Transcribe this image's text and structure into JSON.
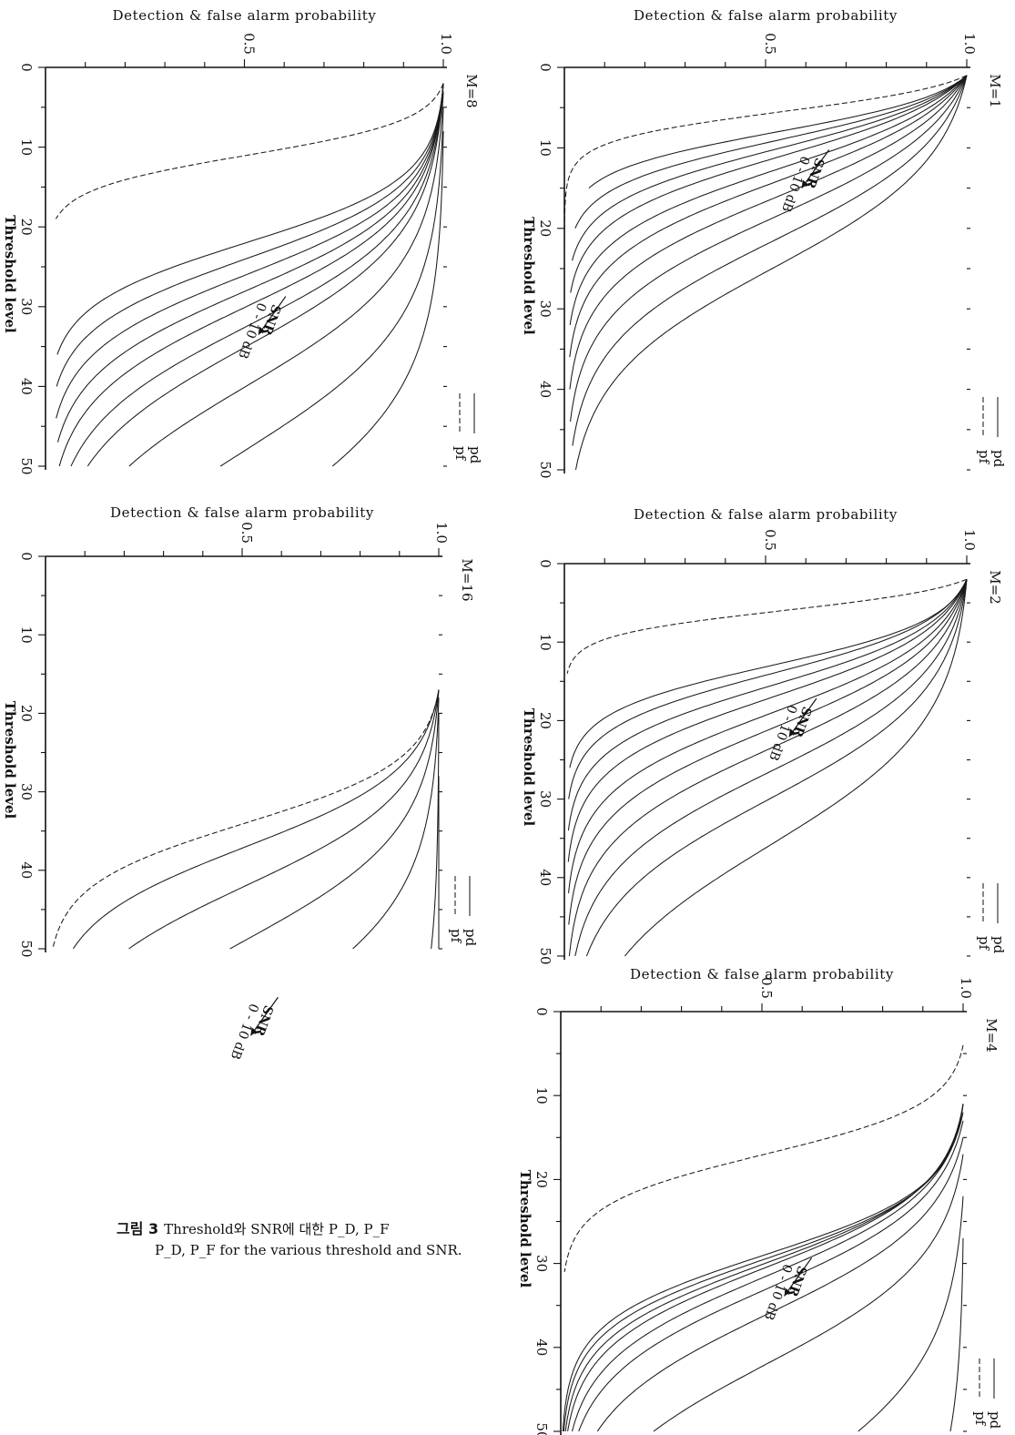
{
  "caption": {
    "label": "그림 3",
    "line1": "Threshold와 SNR에 대한 P_D, P_F",
    "line2": "P_D, P_F for the various threshold and SNR."
  },
  "chart_data": [
    {
      "type": "line",
      "title": "M=1",
      "xlabel": "Threshold level",
      "ylabel": "Detection & false alarm probability",
      "x_ticks": [
        "0",
        "10",
        "20",
        "30",
        "40",
        "50"
      ],
      "y_ticks": [
        "0.5",
        "1.0"
      ],
      "xlim": [
        0,
        50
      ],
      "ylim": [
        0,
        1.0
      ],
      "legend": [
        "pf",
        "pd"
      ],
      "annotation": [
        "SNR",
        "0 - 10 dB"
      ],
      "pf": {
        "x0": 1,
        "t": 5.5,
        "s": 1.8,
        "end_x": 30
      },
      "pd": [
        {
          "x0": 1,
          "t": 8,
          "s": 2.5,
          "end_x": 15
        },
        {
          "x0": 1,
          "t": 9,
          "s": 3,
          "end_x": 20
        },
        {
          "x0": 1,
          "t": 10,
          "s": 3.5,
          "end_x": 24
        },
        {
          "x0": 1,
          "t": 11,
          "s": 4,
          "end_x": 28
        },
        {
          "x0": 1,
          "t": 12.5,
          "s": 4.5,
          "end_x": 32
        },
        {
          "x0": 1,
          "t": 14,
          "s": 5,
          "end_x": 36
        },
        {
          "x0": 1,
          "t": 16,
          "s": 5.5,
          "end_x": 40
        },
        {
          "x0": 1,
          "t": 18.5,
          "s": 6,
          "end_x": 44
        },
        {
          "x0": 1,
          "t": 21.5,
          "s": 6.5,
          "end_x": 47
        },
        {
          "x0": 1,
          "t": 25,
          "s": 7,
          "end_x": 50
        }
      ]
    },
    {
      "type": "line",
      "title": "M=2",
      "xlabel": "Threshold level",
      "ylabel": "Detection & false alarm probability",
      "x_ticks": [
        "0",
        "10",
        "20",
        "30",
        "40",
        "50"
      ],
      "y_ticks": [
        "0.5",
        "1.0"
      ],
      "xlim": [
        0,
        50
      ],
      "ylim": [
        0,
        1.0
      ],
      "legend": [
        "pf",
        "pd"
      ],
      "annotation": [
        "SNR",
        "0 - 10 dB"
      ],
      "pf": {
        "x0": 2,
        "t": 6,
        "s": 1.6,
        "end_x": 14
      },
      "pd": [
        {
          "x0": 2,
          "t": 13,
          "s": 3,
          "end_x": 26
        },
        {
          "x0": 2,
          "t": 14,
          "s": 3.5,
          "end_x": 30
        },
        {
          "x0": 2,
          "t": 15.5,
          "s": 4,
          "end_x": 34
        },
        {
          "x0": 2,
          "t": 17,
          "s": 4.5,
          "end_x": 38
        },
        {
          "x0": 2,
          "t": 19,
          "s": 5,
          "end_x": 42
        },
        {
          "x0": 2,
          "t": 21,
          "s": 5.5,
          "end_x": 46
        },
        {
          "x0": 2,
          "t": 23.5,
          "s": 6,
          "end_x": 50
        },
        {
          "x0": 2,
          "t": 26.5,
          "s": 6.5,
          "end_x": 50
        },
        {
          "x0": 2,
          "t": 30,
          "s": 7,
          "end_x": 50
        },
        {
          "x0": 2,
          "t": 36,
          "s": 8,
          "end_x": 50
        }
      ]
    },
    {
      "type": "line",
      "title": "M=4",
      "xlabel": "Threshold level",
      "ylabel": "Detection & false alarm probability",
      "x_ticks": [
        "0",
        "10",
        "20",
        "30",
        "40",
        "50"
      ],
      "y_ticks": [
        "0.5",
        "1.0"
      ],
      "xlim": [
        0,
        50
      ],
      "ylim": [
        0,
        1.0
      ],
      "legend": [
        "pf",
        "pd"
      ],
      "annotation": [
        "SNR",
        "0 - 10 dB"
      ],
      "pf": {
        "x0": 4,
        "t": 17,
        "s": 3,
        "end_x": 31
      },
      "pd": [
        {
          "x0": 11,
          "t": 29,
          "s": 4,
          "end_x": 50
        },
        {
          "x0": 11,
          "t": 29.5,
          "s": 4.2,
          "end_x": 50
        },
        {
          "x0": 11,
          "t": 30,
          "s": 4.5,
          "end_x": 50
        },
        {
          "x0": 11,
          "t": 30.5,
          "s": 4.8,
          "end_x": 50
        },
        {
          "x0": 12,
          "t": 31.5,
          "s": 5.2,
          "end_x": 50
        },
        {
          "x0": 13,
          "t": 33,
          "s": 5.5,
          "end_x": 50
        },
        {
          "x0": 15,
          "t": 36,
          "s": 6,
          "end_x": 50
        },
        {
          "x0": 17,
          "t": 42,
          "s": 6.5,
          "end_x": 50
        },
        {
          "x0": 22,
          "t": 58,
          "s": 8,
          "end_x": 50
        },
        {
          "x0": 27,
          "t": 80,
          "s": 9,
          "end_x": 50
        }
      ]
    },
    {
      "type": "line",
      "title": "M=8",
      "xlabel": "Threshold level",
      "ylabel": "Detection & false alarm probability",
      "x_ticks": [
        "0",
        "10",
        "20",
        "30",
        "40",
        "50"
      ],
      "y_ticks": [
        "0.5",
        "1.0"
      ],
      "xlim": [
        0,
        50
      ],
      "ylim": [
        0,
        1.0
      ],
      "legend": [
        "pf",
        "pd"
      ],
      "annotation": [
        "SNR",
        "0 - 10 dB"
      ],
      "pf": {
        "x0": 2,
        "t": 11,
        "s": 2.2,
        "end_x": 19
      },
      "pd": [
        {
          "x0": 2,
          "t": 22,
          "s": 4,
          "end_x": 36
        },
        {
          "x0": 2,
          "t": 24,
          "s": 4.5,
          "end_x": 40
        },
        {
          "x0": 2,
          "t": 26,
          "s": 5,
          "end_x": 44
        },
        {
          "x0": 2,
          "t": 28,
          "s": 5.5,
          "end_x": 47
        },
        {
          "x0": 2,
          "t": 30,
          "s": 6,
          "end_x": 50
        },
        {
          "x0": 2,
          "t": 32.5,
          "s": 6.5,
          "end_x": 50
        },
        {
          "x0": 2,
          "t": 35,
          "s": 7,
          "end_x": 50
        },
        {
          "x0": 3,
          "t": 40,
          "s": 7.5,
          "end_x": 50
        },
        {
          "x0": 5,
          "t": 48,
          "s": 8,
          "end_x": 50
        },
        {
          "x0": 8,
          "t": 58,
          "s": 8.5,
          "end_x": 50
        }
      ]
    },
    {
      "type": "line",
      "title": "M=16",
      "xlabel": "Threshold level",
      "ylabel": "Detection & false alarm probability",
      "x_ticks": [
        "0",
        "10",
        "20",
        "30",
        "40",
        "50"
      ],
      "y_ticks": [
        "0.5",
        "1.0"
      ],
      "xlim": [
        0,
        50
      ],
      "ylim": [
        0,
        1.0
      ],
      "legend": [
        "pf",
        "pd"
      ],
      "annotation": [
        "SNR",
        "0 - 10 dB"
      ],
      "pf": {
        "x0": 17,
        "t": 34,
        "s": 4,
        "end_x": 50
      },
      "pd": [
        {
          "x0": 17,
          "t": 37,
          "s": 5,
          "end_x": 50
        },
        {
          "x0": 17,
          "t": 42,
          "s": 6,
          "end_x": 50
        },
        {
          "x0": 17,
          "t": 49,
          "s": 7,
          "end_x": 50
        },
        {
          "x0": 18,
          "t": 60,
          "s": 8,
          "end_x": 50
        },
        {
          "x0": 20,
          "t": 85,
          "s": 9,
          "end_x": 50
        },
        {
          "x0": 28,
          "t": 140,
          "s": 10,
          "end_x": 50
        }
      ]
    }
  ]
}
